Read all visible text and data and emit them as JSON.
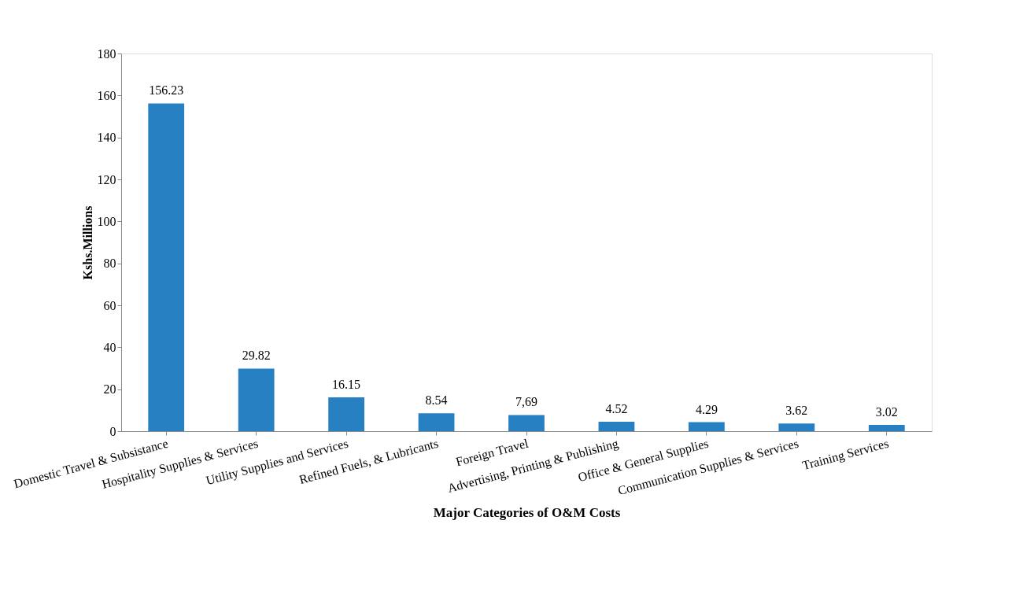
{
  "chart_data": {
    "type": "bar",
    "xlabel": "Major Categories of O&M Costs",
    "ylabel": "Kshs.Millions",
    "categories": [
      "Domestic Travel & Subsistance",
      "Hospitality Supplies & Services",
      "Utility Supplies and Services",
      "Refined Fuels, & Lubricants",
      "Foreign Travel",
      "Advertising, Printing & Publishing",
      "Office & General Supplies",
      "Communication Supplies & Services",
      "Training Services"
    ],
    "values": [
      156.23,
      29.82,
      16.15,
      8.54,
      7.69,
      4.52,
      4.29,
      3.62,
      3.02
    ],
    "value_labels": [
      "156.23",
      "29.82",
      "16.15",
      "8.54",
      "7,69",
      "4.52",
      "4.29",
      "3.62",
      "3.02"
    ],
    "color": "#2680c2",
    "ylim": [
      0,
      180
    ],
    "yticks": [
      0,
      20,
      40,
      60,
      80,
      100,
      120,
      140,
      160,
      180
    ],
    "grid": false
  }
}
